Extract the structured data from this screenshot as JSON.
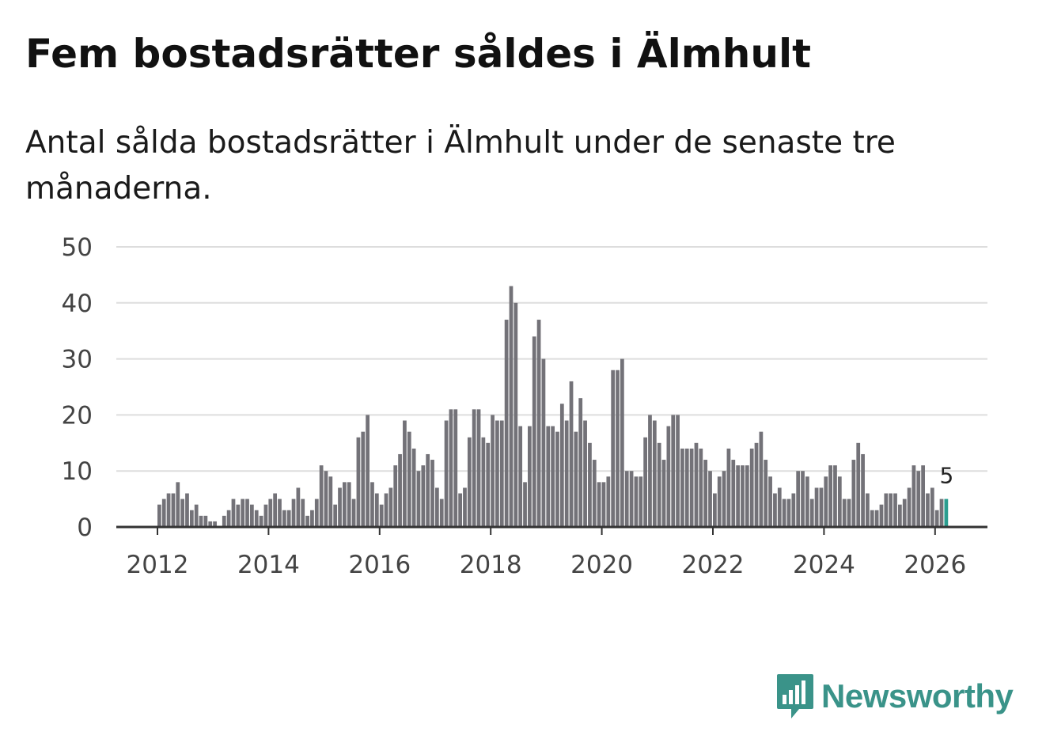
{
  "title": "Fem bostadsrätter såldes i Älmhult",
  "subtitle": "Antal sålda bostadsrätter i Älmhult under de senaste tre månaderna.",
  "brand": {
    "name": "Newsworthy",
    "color": "#3a9389"
  },
  "colors": {
    "bar": "#737278",
    "highlight": "#2a9d8f",
    "grid": "#dddddd",
    "axis": "#333333"
  },
  "chart_data": {
    "type": "bar",
    "title": "Antal sålda bostadsrätter i Älmhult",
    "xlabel": "",
    "ylabel": "",
    "ylim": [
      0,
      50
    ],
    "yticks": [
      0,
      10,
      20,
      30,
      40,
      50
    ],
    "xticks": [
      "2012",
      "2014",
      "2016",
      "2018",
      "2020",
      "2022",
      "2024",
      "2026"
    ],
    "start": "2012-01",
    "values": [
      4,
      5,
      6,
      6,
      8,
      5,
      6,
      3,
      4,
      2,
      2,
      1,
      1,
      0,
      2,
      3,
      5,
      4,
      5,
      5,
      4,
      3,
      2,
      4,
      5,
      6,
      5,
      3,
      3,
      5,
      7,
      5,
      2,
      3,
      5,
      11,
      10,
      9,
      4,
      7,
      8,
      8,
      5,
      16,
      17,
      20,
      8,
      6,
      4,
      6,
      7,
      11,
      13,
      19,
      17,
      14,
      10,
      11,
      13,
      12,
      7,
      5,
      19,
      21,
      21,
      6,
      7,
      16,
      21,
      21,
      16,
      15,
      20,
      19,
      19,
      37,
      43,
      40,
      18,
      8,
      18,
      34,
      37,
      30,
      18,
      18,
      17,
      22,
      19,
      26,
      17,
      23,
      19,
      15,
      12,
      8,
      8,
      9,
      28,
      28,
      30,
      10,
      10,
      9,
      9,
      16,
      20,
      19,
      15,
      12,
      18,
      20,
      20,
      14,
      14,
      14,
      15,
      14,
      12,
      10,
      6,
      9,
      10,
      14,
      12,
      11,
      11,
      11,
      14,
      15,
      17,
      12,
      9,
      6,
      7,
      5,
      5,
      6,
      10,
      10,
      9,
      5,
      7,
      7,
      9,
      11,
      11,
      9,
      5,
      5,
      12,
      15,
      13,
      6,
      3,
      3,
      4,
      6,
      6,
      6,
      4,
      5,
      7,
      11,
      10,
      11,
      6,
      7,
      3,
      5,
      5
    ],
    "highlight_last": 1,
    "annotation": {
      "label": "5"
    }
  }
}
